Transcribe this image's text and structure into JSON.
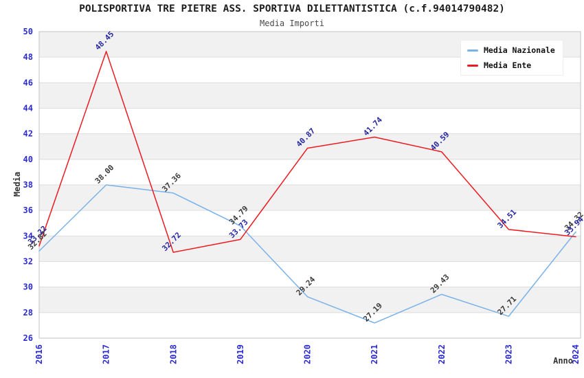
{
  "chart_data": {
    "type": "line",
    "title": "POLISPORTIVA TRE PIETRE ASS. SPORTIVA DILETTANTISTICA (c.f.94014790482)",
    "subtitle": "Media Importi",
    "xlabel": "Anno",
    "ylabel": "Media",
    "x": [
      2016,
      2017,
      2018,
      2019,
      2020,
      2021,
      2022,
      2023,
      2024
    ],
    "xtick_labels": [
      "2016",
      "2017",
      "2018",
      "2019",
      "2020",
      "2021",
      "2022",
      "2023",
      "2024"
    ],
    "series": [
      {
        "name": "Media Nazionale",
        "color": "#79b2e8",
        "label_color": "#3a3a3a",
        "values": [
          32.82,
          38.0,
          37.36,
          34.79,
          29.24,
          27.19,
          29.43,
          27.71,
          34.32
        ]
      },
      {
        "name": "Media Ente",
        "color": "#ec1a20",
        "label_color": "#26269f",
        "values": [
          33.22,
          48.45,
          32.72,
          33.73,
          40.87,
          41.74,
          40.59,
          34.51,
          33.94
        ]
      }
    ],
    "ylim": [
      26,
      50
    ],
    "ytick_step": 2,
    "grid": true,
    "banded_background": true,
    "legend_position": "top-right",
    "axis_tick_color": "#2b2bd0",
    "value_label_decimals": 2
  }
}
